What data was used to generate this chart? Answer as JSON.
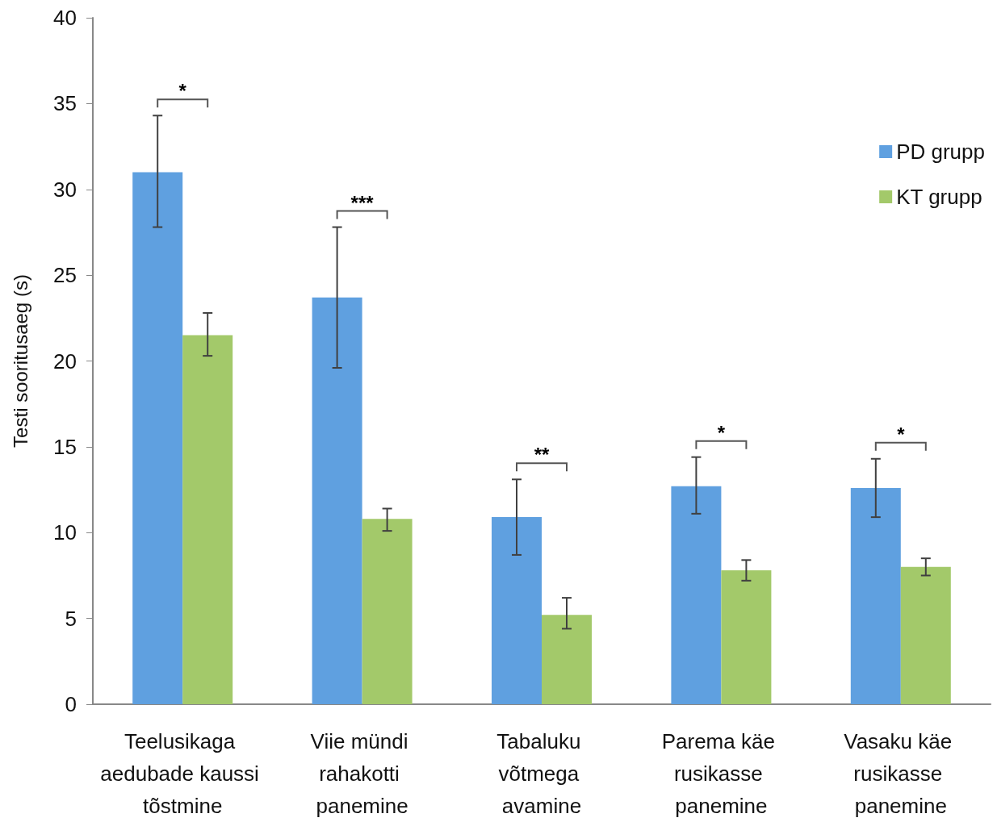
{
  "chart_data": {
    "type": "bar",
    "ylabel": "Testi sooritusaeg (s)",
    "categories": [
      "Teelusikaga aedubade kaussi tõstmine",
      "Viie mündi rahakotti panemine",
      "Tabaluku võtmega avamine",
      "Parema käe rusikasse panemine",
      "Vasaku käe rusikasse panemine"
    ],
    "series": [
      {
        "name": "PD grupp",
        "color": "#5fa0e0",
        "values": [
          31.0,
          23.7,
          10.9,
          12.7,
          12.6
        ],
        "errors": [
          [
            27.8,
            34.3
          ],
          [
            19.6,
            27.8
          ],
          [
            8.7,
            13.1
          ],
          [
            11.1,
            14.4
          ],
          [
            10.9,
            14.3
          ]
        ]
      },
      {
        "name": "KT grupp",
        "color": "#a3c96a",
        "values": [
          21.5,
          10.8,
          5.2,
          7.8,
          8.0
        ],
        "errors": [
          [
            20.3,
            22.8
          ],
          [
            10.1,
            11.4
          ],
          [
            4.4,
            6.2
          ],
          [
            7.2,
            8.4
          ],
          [
            7.5,
            8.5
          ]
        ]
      }
    ],
    "ylim": [
      0,
      40
    ],
    "yticks": [
      0,
      5,
      10,
      15,
      20,
      25,
      30,
      35,
      40
    ],
    "grid": false,
    "legend": "top right",
    "annotations": [
      "*",
      "***",
      "**",
      "*",
      "*"
    ]
  }
}
